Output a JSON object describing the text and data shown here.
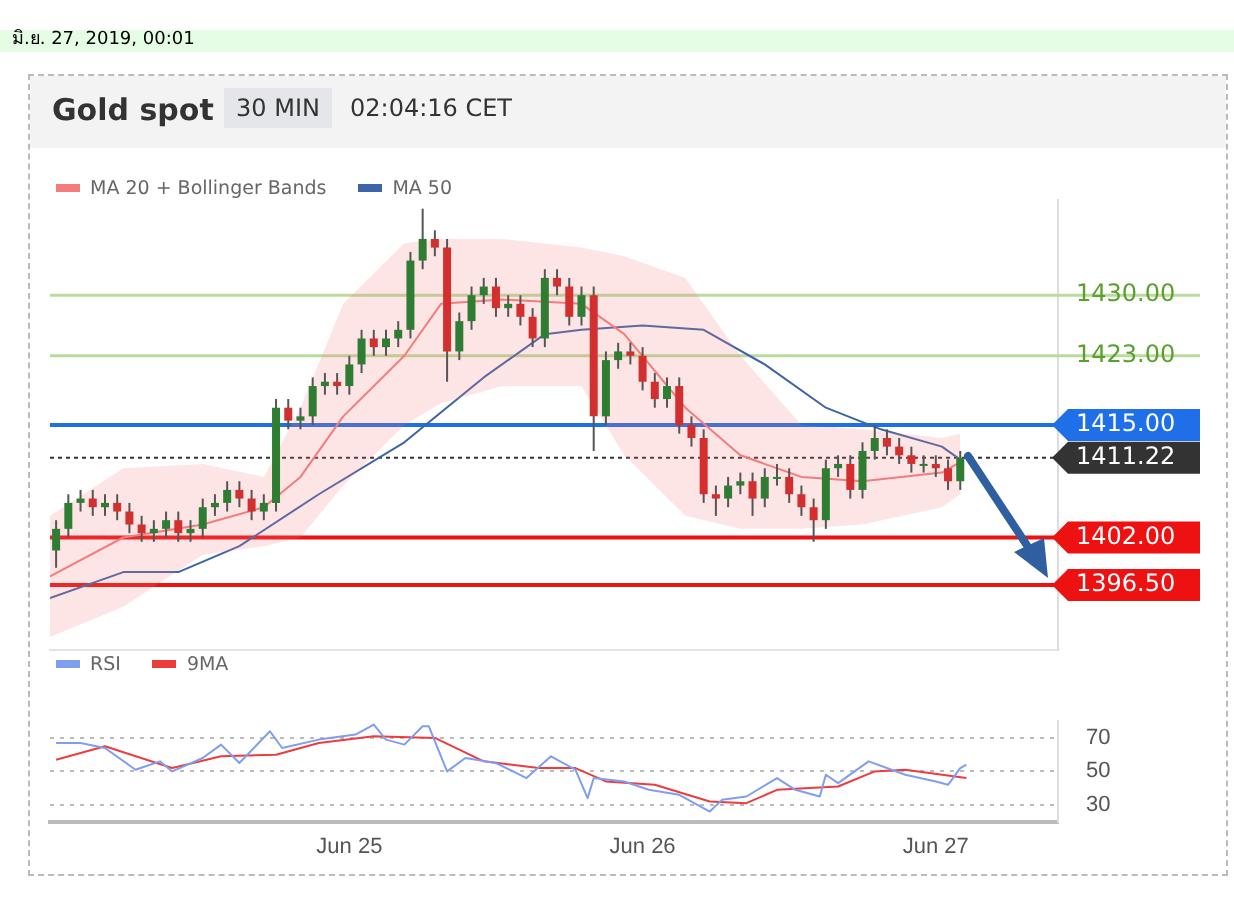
{
  "chart_data": [
    {
      "type": "candlestick",
      "title": "Gold spot",
      "subtitle": "30 MIN",
      "annotations": [
        "02:04:16 CET",
        "มิ.ย. 27, 2019, 00:01"
      ],
      "x": [
        "2019-06-24T00:00",
        "2019-06-24T01:00",
        "2019-06-24T02:00",
        "2019-06-24T03:00",
        "2019-06-24T04:00",
        "2019-06-24T05:00",
        "2019-06-24T06:00",
        "2019-06-24T07:00",
        "2019-06-24T08:00",
        "2019-06-24T09:00",
        "2019-06-24T10:00",
        "2019-06-24T11:00",
        "2019-06-24T12:00",
        "2019-06-24T13:00",
        "2019-06-24T14:00",
        "2019-06-24T15:00",
        "2019-06-24T16:00",
        "2019-06-24T17:00",
        "2019-06-24T18:00",
        "2019-06-24T19:00",
        "2019-06-24T20:00",
        "2019-06-24T21:00",
        "2019-06-24T22:00",
        "2019-06-24T23:00",
        "2019-06-25T00:00",
        "2019-06-25T01:00",
        "2019-06-25T02:00",
        "2019-06-25T03:00",
        "2019-06-25T04:00",
        "2019-06-25T05:00",
        "2019-06-25T06:00",
        "2019-06-25T07:00",
        "2019-06-25T08:00",
        "2019-06-25T09:00",
        "2019-06-25T10:00",
        "2019-06-25T11:00",
        "2019-06-25T12:00",
        "2019-06-25T13:00",
        "2019-06-25T14:00",
        "2019-06-25T15:00",
        "2019-06-25T16:00",
        "2019-06-25T17:00",
        "2019-06-25T18:00",
        "2019-06-25T19:00",
        "2019-06-25T20:00",
        "2019-06-25T21:00",
        "2019-06-25T22:00",
        "2019-06-25T23:00",
        "2019-06-26T00:00",
        "2019-06-26T01:00",
        "2019-06-26T02:00",
        "2019-06-26T03:00",
        "2019-06-26T04:00",
        "2019-06-26T05:00",
        "2019-06-26T06:00",
        "2019-06-26T07:00",
        "2019-06-26T08:00",
        "2019-06-26T09:00",
        "2019-06-26T10:00",
        "2019-06-26T11:00",
        "2019-06-26T12:00",
        "2019-06-26T13:00",
        "2019-06-26T14:00",
        "2019-06-26T15:00",
        "2019-06-26T16:00",
        "2019-06-26T17:00",
        "2019-06-26T18:00",
        "2019-06-26T19:00",
        "2019-06-26T20:00",
        "2019-06-26T21:00",
        "2019-06-26T22:00",
        "2019-06-26T23:00",
        "2019-06-27T00:00",
        "2019-06-27T01:00",
        "2019-06-27T02:00"
      ],
      "ohlc": [
        [
          1400.5,
          1404,
          1398.5,
          1403
        ],
        [
          1403,
          1407,
          1402,
          1406
        ],
        [
          1406,
          1407.5,
          1405,
          1406.5
        ],
        [
          1406.5,
          1407.5,
          1404.5,
          1405.5
        ],
        [
          1405.5,
          1407,
          1404.5,
          1406
        ],
        [
          1406,
          1407,
          1404,
          1405
        ],
        [
          1405,
          1406,
          1402.5,
          1403.5
        ],
        [
          1403.5,
          1404.5,
          1401.5,
          1402.5
        ],
        [
          1402.5,
          1404,
          1401.5,
          1403
        ],
        [
          1403,
          1405,
          1402,
          1404
        ],
        [
          1404,
          1405,
          1401.5,
          1402.5
        ],
        [
          1402.5,
          1404,
          1401.5,
          1403
        ],
        [
          1403,
          1406.5,
          1402,
          1405.5
        ],
        [
          1405.5,
          1407,
          1404.5,
          1406
        ],
        [
          1406,
          1408.5,
          1405,
          1407.5
        ],
        [
          1407.5,
          1408.5,
          1405.5,
          1406.5
        ],
        [
          1406.5,
          1407.5,
          1404,
          1405
        ],
        [
          1405,
          1407,
          1404,
          1406
        ],
        [
          1406,
          1418,
          1405,
          1417
        ],
        [
          1417,
          1418,
          1414.5,
          1415.5
        ],
        [
          1415.5,
          1417,
          1414.5,
          1416
        ],
        [
          1416,
          1420.5,
          1415,
          1419.5
        ],
        [
          1419.5,
          1421,
          1418.5,
          1420
        ],
        [
          1420,
          1421,
          1418.5,
          1419.5
        ],
        [
          1419.5,
          1423,
          1418.5,
          1422
        ],
        [
          1422,
          1426,
          1421,
          1425
        ],
        [
          1425,
          1426,
          1423,
          1424
        ],
        [
          1424,
          1426,
          1423,
          1425
        ],
        [
          1425,
          1427,
          1424,
          1426
        ],
        [
          1426,
          1435,
          1425,
          1434
        ],
        [
          1434,
          1440,
          1433,
          1436.5
        ],
        [
          1436.5,
          1437.5,
          1434.5,
          1435.5
        ],
        [
          1435.5,
          1436.5,
          1420,
          1423.5
        ],
        [
          1423.5,
          1428,
          1422.5,
          1427
        ],
        [
          1427,
          1431,
          1426,
          1430
        ],
        [
          1430,
          1432,
          1429,
          1431
        ],
        [
          1431,
          1432,
          1427.5,
          1428.5
        ],
        [
          1428.5,
          1430,
          1427.5,
          1429
        ],
        [
          1429,
          1430,
          1426.5,
          1427.5
        ],
        [
          1427.5,
          1428.5,
          1424,
          1425
        ],
        [
          1425,
          1433,
          1424,
          1432
        ],
        [
          1432,
          1433,
          1430,
          1431
        ],
        [
          1431,
          1432,
          1426.5,
          1427.5
        ],
        [
          1427.5,
          1431,
          1426.5,
          1430
        ],
        [
          1430,
          1431,
          1412,
          1416
        ],
        [
          1416,
          1423.5,
          1415,
          1422.5
        ],
        [
          1422.5,
          1424.5,
          1421.5,
          1423.5
        ],
        [
          1423.5,
          1424.5,
          1422,
          1423
        ],
        [
          1423,
          1424,
          1419,
          1420
        ],
        [
          1420,
          1421,
          1417,
          1418
        ],
        [
          1418,
          1420.5,
          1417,
          1419.5
        ],
        [
          1419.5,
          1420.5,
          1414,
          1415
        ],
        [
          1415,
          1416,
          1412.5,
          1413.5
        ],
        [
          1413.5,
          1414.5,
          1406,
          1407
        ],
        [
          1407,
          1408,
          1404.5,
          1406.5
        ],
        [
          1406.5,
          1409,
          1405.5,
          1408
        ],
        [
          1408,
          1409.5,
          1407,
          1408.5
        ],
        [
          1408.5,
          1409.5,
          1404.5,
          1406.5
        ],
        [
          1406.5,
          1410,
          1405.5,
          1409
        ],
        [
          1409,
          1410.5,
          1408,
          1409
        ],
        [
          1409,
          1410,
          1406,
          1407
        ],
        [
          1407,
          1408,
          1404.5,
          1405.5
        ],
        [
          1405.5,
          1406.5,
          1401.5,
          1404
        ],
        [
          1404,
          1411,
          1403,
          1410
        ],
        [
          1410,
          1411.5,
          1409,
          1410.5
        ],
        [
          1410.5,
          1411.5,
          1406.5,
          1407.5
        ],
        [
          1407.5,
          1413,
          1406.5,
          1412
        ],
        [
          1412,
          1415,
          1411,
          1413.5
        ],
        [
          1413.5,
          1414.5,
          1411.5,
          1412.5
        ],
        [
          1412.5,
          1413.5,
          1410.5,
          1411.5
        ],
        [
          1411.5,
          1412.5,
          1409.5,
          1410.5
        ],
        [
          1410.5,
          1411.5,
          1409.5,
          1410.5
        ],
        [
          1410.5,
          1411.5,
          1409,
          1410
        ],
        [
          1410,
          1411,
          1407.5,
          1408.5
        ],
        [
          1408.5,
          1412,
          1407.5,
          1411.22
        ]
      ],
      "series": [
        {
          "name": "MA 20 + Bollinger Bands",
          "type": "line",
          "color": "#f47c7c",
          "x": [
            "2019-06-23T23:30",
            "2019-06-24T05:30",
            "2019-06-24T12:00",
            "2019-06-24T17:00",
            "2019-06-24T20:00",
            "2019-06-24T23:30",
            "2019-06-25T04:30",
            "2019-06-25T07:30",
            "2019-06-25T12:30",
            "2019-06-25T19:00",
            "2019-06-25T22:30",
            "2019-06-26T03:30",
            "2019-06-26T08:00",
            "2019-06-26T13:00",
            "2019-06-26T18:00",
            "2019-06-27T00:30",
            "2019-06-27T02:00"
          ],
          "values": [
            1397.5,
            1402,
            1403.5,
            1405.5,
            1409,
            1416,
            1423,
            1429,
            1429.5,
            1429,
            1425.5,
            1417,
            1411.5,
            1409,
            1408.5,
            1409.5,
            1410.7
          ],
          "lower": [
            1390.5,
            1394,
            1400,
            1401,
            1402,
            1408,
            1415,
            1417.5,
            1419.5,
            1419.5,
            1411.5,
            1404.5,
            1403,
            1403,
            1403.5,
            1405.5,
            1407
          ],
          "upper": [
            1404.5,
            1410,
            1410.5,
            1409,
            1417,
            1429,
            1436,
            1436.5,
            1436.5,
            1435.5,
            1434.5,
            1432,
            1423,
            1415,
            1414.5,
            1413.5,
            1414
          ]
        },
        {
          "name": "MA 50",
          "type": "line",
          "color": "#3d64a8",
          "x": [
            "2019-06-23T23:30",
            "2019-06-24T05:30",
            "2019-06-24T10:00",
            "2019-06-24T15:00",
            "2019-06-24T21:30",
            "2019-06-25T04:30",
            "2019-06-25T11:00",
            "2019-06-25T16:00",
            "2019-06-25T19:00",
            "2019-06-26T00:00",
            "2019-06-26T05:00",
            "2019-06-26T10:00",
            "2019-06-26T15:00",
            "2019-06-26T19:30",
            "2019-06-27T00:30",
            "2019-06-27T02:00"
          ],
          "values": [
            1395,
            1398,
            1398,
            1401,
            1407,
            1413,
            1420.5,
            1425.5,
            1426,
            1426.5,
            1426,
            1422,
            1417,
            1414.5,
            1412.5,
            1411
          ]
        }
      ],
      "xlim": [
        "2019-06-23T23:30",
        "2019-06-27T10:00"
      ],
      "ylim": [
        1389,
        1441
      ],
      "legend": "top left",
      "ref_lines": [
        {
          "axis": "y",
          "value": 1430,
          "label": "1430.00",
          "color": "#b9dc9e",
          "line_style": "solid"
        },
        {
          "axis": "y",
          "value": 1423,
          "label": "1423.00",
          "color": "#b9dc9e",
          "line_style": "solid"
        },
        {
          "axis": "y",
          "value": 1415,
          "label": "1415.00",
          "color": "#1f6fe8",
          "line_style": "solid"
        },
        {
          "axis": "y",
          "value": 1411.22,
          "label": "1411.22",
          "color": "#333333",
          "line_style": "dotted"
        },
        {
          "axis": "y",
          "value": 1402,
          "label": "1402.00",
          "color": "#ee1111",
          "line_style": "solid"
        },
        {
          "axis": "y",
          "value": 1396.5,
          "label": "1396.50",
          "color": "#ee1111",
          "line_style": "solid"
        }
      ]
    },
    {
      "type": "line",
      "marker": "none",
      "grid": "y",
      "legend": "top left",
      "series": [
        {
          "name": "RSI",
          "color": "#7f9ef0",
          "x": [
            "2019-06-24T00:00",
            "2019-06-24T02:00",
            "2019-06-24T04:00",
            "2019-06-24T06:30",
            "2019-06-24T08:30",
            "2019-06-24T09:30",
            "2019-06-24T12:00",
            "2019-06-24T13:30",
            "2019-06-24T15:00",
            "2019-06-24T17:30",
            "2019-06-24T18:30",
            "2019-06-24T21:30",
            "2019-06-25T00:30",
            "2019-06-25T02:00",
            "2019-06-25T03:00",
            "2019-06-25T04:30",
            "2019-06-25T06:00",
            "2019-06-25T06:30",
            "2019-06-25T08:00",
            "2019-06-25T09:30",
            "2019-06-25T12:00",
            "2019-06-25T14:30",
            "2019-06-25T16:30",
            "2019-06-25T18:30",
            "2019-06-25T19:30",
            "2019-06-25T20:00",
            "2019-06-25T22:30",
            "2019-06-26T00:30",
            "2019-06-26T03:00",
            "2019-06-26T05:30",
            "2019-06-26T06:30",
            "2019-06-26T08:30",
            "2019-06-26T11:00",
            "2019-06-26T12:30",
            "2019-06-26T14:30",
            "2019-06-26T15:00",
            "2019-06-26T16:00",
            "2019-06-26T18:30",
            "2019-06-26T21:30",
            "2019-06-27T00:00",
            "2019-06-27T01:00",
            "2019-06-27T02:00",
            "2019-06-27T02:30"
          ],
          "values": [
            67,
            67,
            64,
            51,
            56,
            50,
            58,
            66,
            55,
            74,
            64,
            69,
            72,
            78,
            69,
            66,
            77,
            77,
            50,
            58,
            55,
            46,
            59,
            51,
            34,
            46,
            44,
            39,
            36,
            26,
            33,
            35,
            46,
            39,
            35,
            48,
            43,
            56,
            48,
            44,
            42,
            52,
            54
          ]
        },
        {
          "name": "9MA",
          "color": "#ee3b3b",
          "x": [
            "2019-06-24T00:00",
            "2019-06-24T04:00",
            "2019-06-24T09:30",
            "2019-06-24T13:30",
            "2019-06-24T18:00",
            "2019-06-24T21:30",
            "2019-06-25T02:00",
            "2019-06-25T07:00",
            "2019-06-25T11:00",
            "2019-06-25T15:30",
            "2019-06-25T18:30",
            "2019-06-25T21:00",
            "2019-06-26T01:00",
            "2019-06-26T05:30",
            "2019-06-26T08:30",
            "2019-06-26T11:00",
            "2019-06-26T16:00",
            "2019-06-26T19:00",
            "2019-06-26T21:30",
            "2019-06-27T02:30"
          ],
          "values": [
            57,
            65,
            52,
            59,
            60,
            67,
            71,
            70,
            56,
            52,
            52,
            44,
            42,
            32,
            31,
            39,
            41,
            50,
            51,
            46
          ]
        }
      ],
      "xlim": [
        "2019-06-23T23:30",
        "2019-06-27T10:00"
      ],
      "xticks": [
        {
          "value": "2019-06-25",
          "label": "Jun 25"
        },
        {
          "value": "2019-06-26",
          "label": "Jun 26"
        },
        {
          "value": "2019-06-27",
          "label": "Jun 27"
        }
      ],
      "ylim": [
        20,
        80
      ],
      "yticks": [
        30,
        50,
        70
      ]
    }
  ]
}
